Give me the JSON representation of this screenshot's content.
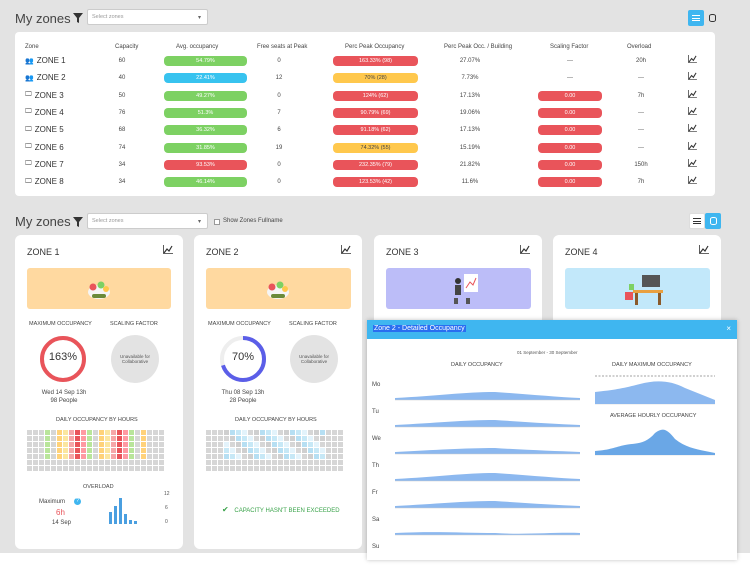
{
  "top": {
    "title": "My zones",
    "select_placeholder": "Select zones",
    "columns": [
      "Zone",
      "Capacity",
      "Avg. occupancy",
      "Free seats at Peak",
      "Perc Peak Occupancy",
      "Perc Peak Occ. / Building",
      "Scaling Factor",
      "Overload"
    ],
    "rows": [
      {
        "icon": "people-icon",
        "name": "ZONE 1",
        "capacity": "60",
        "avg": "54.79%",
        "avg_color": "green",
        "free": "0",
        "peak": "163.33% (98)",
        "peak_color": "red",
        "building": "27.07%",
        "scaling": "---",
        "scaling_pill": false,
        "overload": "20h"
      },
      {
        "icon": "people-icon",
        "name": "ZONE 2",
        "capacity": "40",
        "avg": "22.41%",
        "avg_color": "blue",
        "free": "12",
        "peak": "70% (28)",
        "peak_color": "yellow",
        "building": "7.73%",
        "scaling": "---",
        "scaling_pill": false,
        "overload": "---"
      },
      {
        "icon": "monitor-icon",
        "name": "ZONE 3",
        "capacity": "50",
        "avg": "49.27%",
        "avg_color": "green",
        "free": "0",
        "peak": "124% (62)",
        "peak_color": "red",
        "building": "17.13%",
        "scaling": "0.00",
        "scaling_pill": true,
        "overload": "7h"
      },
      {
        "icon": "monitor-icon",
        "name": "ZONE 4",
        "capacity": "76",
        "avg": "51.3%",
        "avg_color": "green",
        "free": "7",
        "peak": "90.79% (69)",
        "peak_color": "red",
        "building": "19.06%",
        "scaling": "0.00",
        "scaling_pill": true,
        "overload": "---"
      },
      {
        "icon": "monitor-icon",
        "name": "ZONE 5",
        "capacity": "68",
        "avg": "36.32%",
        "avg_color": "green",
        "free": "6",
        "peak": "91.18% (62)",
        "peak_color": "red",
        "building": "17.13%",
        "scaling": "0.00",
        "scaling_pill": true,
        "overload": "---"
      },
      {
        "icon": "monitor-icon",
        "name": "ZONE 6",
        "capacity": "74",
        "avg": "31.85%",
        "avg_color": "green",
        "free": "19",
        "peak": "74.32% (55)",
        "peak_color": "yellow",
        "building": "15.19%",
        "scaling": "0.00",
        "scaling_pill": true,
        "overload": "---"
      },
      {
        "icon": "monitor-icon",
        "name": "ZONE 7",
        "capacity": "34",
        "avg": "93.53%",
        "avg_color": "red",
        "free": "0",
        "peak": "232.35% (79)",
        "peak_color": "red",
        "building": "21.82%",
        "scaling": "0.00",
        "scaling_pill": true,
        "overload": "150h"
      },
      {
        "icon": "monitor-icon",
        "name": "ZONE 8",
        "capacity": "34",
        "avg": "46.14%",
        "avg_color": "green",
        "free": "0",
        "peak": "123.53% (42)",
        "peak_color": "red",
        "building": "11.6%",
        "scaling": "0.00",
        "scaling_pill": true,
        "overload": "7h"
      }
    ]
  },
  "bottom": {
    "title": "My zones",
    "select_placeholder": "Select zones",
    "checkbox_label": "Show Zones Fullname",
    "cards": [
      {
        "name": "ZONE 1",
        "max_label": "MAXIMUM OCCUPANCY",
        "scaling_label": "SCALING FACTOR",
        "ring_value": "163%",
        "ring_fraction": 1.0,
        "ring_color": "#e9545a",
        "bubble_text": "Unavailable for Collaborative",
        "date_line": "Wed 14 Sep 13h",
        "people_line": "98 People",
        "hours_label": "DAILY OCCUPANCY BY HOURS",
        "overload_label": "OVERLOAD",
        "max_caption": "Maximum",
        "max_value": "6h",
        "max_date": "14 Sep",
        "overload_y": [
          "12",
          "6",
          "0"
        ]
      },
      {
        "name": "ZONE 2",
        "max_label": "MAXIMUM OCCUPANCY",
        "scaling_label": "SCALING FACTOR",
        "ring_value": "70%",
        "ring_fraction": 0.7,
        "ring_color": "#5b5ee8",
        "bubble_text": "Unavailable for Collaborative",
        "date_line": "Thu 08 Sep 13h",
        "people_line": "28 People",
        "hours_label": "DAILY OCCUPANCY BY HOURS",
        "capacity_ok": "CAPACITY HASN'T BEEN EXCEEDED"
      },
      {
        "name": "ZONE 3"
      },
      {
        "name": "ZONE 4"
      }
    ]
  },
  "modal": {
    "title": "Zone 2 - Detailed Occupancy",
    "close": "×",
    "date_range": "01 September - 30 September",
    "daily_label": "DAILY OCCUPANCY",
    "daily_max_label": "DAILY MAXIMUM OCCUPANCY",
    "hourly_label": "AVERAGE HOURLY OCCUPANCY",
    "days": [
      "Mo",
      "Tu",
      "We",
      "Th",
      "Fr",
      "Sa",
      "Su"
    ]
  },
  "colors": {
    "accent": "#3fb6f0",
    "green": "#7dd163",
    "red": "#e9545a",
    "yellow": "#ffc84d",
    "blue": "#38c3ef"
  }
}
